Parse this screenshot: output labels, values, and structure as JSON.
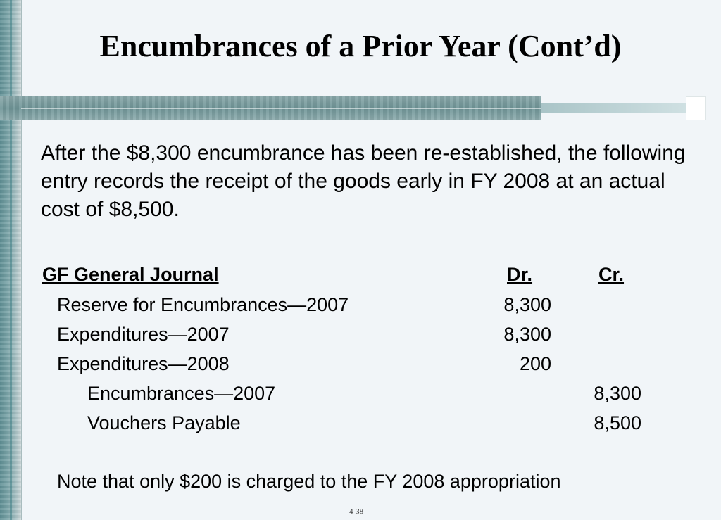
{
  "title": "Encumbrances of a Prior Year (Cont’d)",
  "intro": "After the $8,300 encumbrance has been re-established, the following entry records the receipt of the goods early in FY 2008 at an actual cost of $8,500.",
  "journal": {
    "title": "GF General Journal",
    "dr_label": "Dr.",
    "cr_label": "Cr.",
    "rows": [
      {
        "account": "Reserve for Encumbrances—2007",
        "dr": "8,300",
        "cr": ""
      },
      {
        "account": "Expenditures—2007",
        "dr": "8,300",
        "cr": ""
      },
      {
        "account": "Expenditures—2008",
        "dr": "200",
        "cr": ""
      },
      {
        "account": "Encumbrances—2007",
        "dr": "",
        "cr": "8,300"
      },
      {
        "account": "Vouchers Payable",
        "dr": "",
        "cr": "8,500"
      }
    ]
  },
  "note": "Note that only $200 is charged to the FY 2008 appropriation",
  "slide_number": "4-38",
  "colors": {
    "background": "#f1f5f8",
    "accent_band": "#6f9597"
  }
}
